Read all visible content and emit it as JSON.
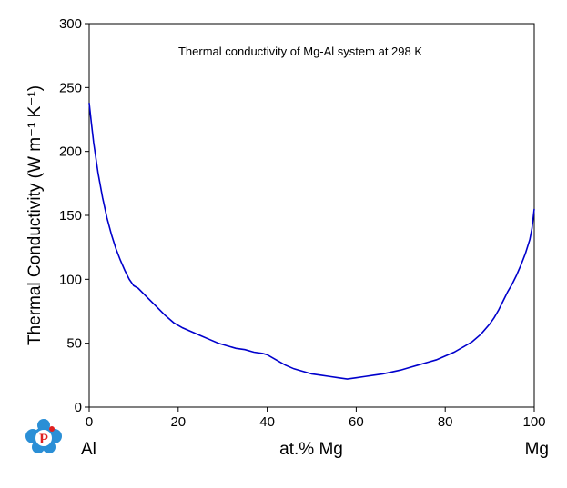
{
  "chart_data": {
    "type": "line",
    "title": "",
    "annotation": "Thermal conductivity of Mg-Al system at 298 K",
    "xlabel": "at.% Mg",
    "ylabel": "Thermal Conductivity (W m⁻¹ K⁻¹)",
    "x_end_labels": {
      "left": "Al",
      "right": "Mg"
    },
    "xlim": [
      0,
      100
    ],
    "ylim": [
      0,
      300
    ],
    "xticks": [
      0,
      20,
      40,
      60,
      80,
      100
    ],
    "yticks": [
      0,
      50,
      100,
      150,
      200,
      250,
      300
    ],
    "grid": false,
    "line_color": "#0000cc",
    "series": [
      {
        "x": [
          0,
          0.5,
          1,
          2,
          3,
          4,
          5,
          6,
          7,
          8,
          9,
          10,
          11,
          13,
          15,
          17,
          19,
          21,
          23,
          25,
          27,
          29,
          31,
          33,
          35,
          37,
          39,
          40,
          42,
          44,
          46,
          48,
          50,
          52,
          54,
          56,
          58,
          60,
          62,
          64,
          66,
          68,
          70,
          72,
          74,
          76,
          78,
          80,
          82,
          84,
          86,
          88,
          90,
          91,
          92,
          93,
          94,
          95,
          96,
          97,
          98,
          99,
          99.5,
          100
        ],
        "y": [
          238,
          222,
          207,
          183,
          164,
          148,
          135,
          124,
          115,
          107,
          100,
          95,
          93,
          86,
          79,
          72,
          66,
          62,
          59,
          56,
          53,
          50,
          48,
          46,
          45,
          43,
          42,
          41,
          37,
          33,
          30,
          28,
          26,
          25,
          24,
          23,
          22,
          23,
          24,
          25,
          26,
          27.5,
          29,
          31,
          33,
          35,
          37,
          40,
          43,
          47,
          51,
          57,
          65,
          70,
          76,
          83,
          90,
          96,
          103,
          111,
          120,
          131,
          140,
          155
        ]
      }
    ]
  },
  "logo": {
    "letter": "P",
    "colors": {
      "blue": "#2b8fd6",
      "red": "#e02020"
    }
  }
}
